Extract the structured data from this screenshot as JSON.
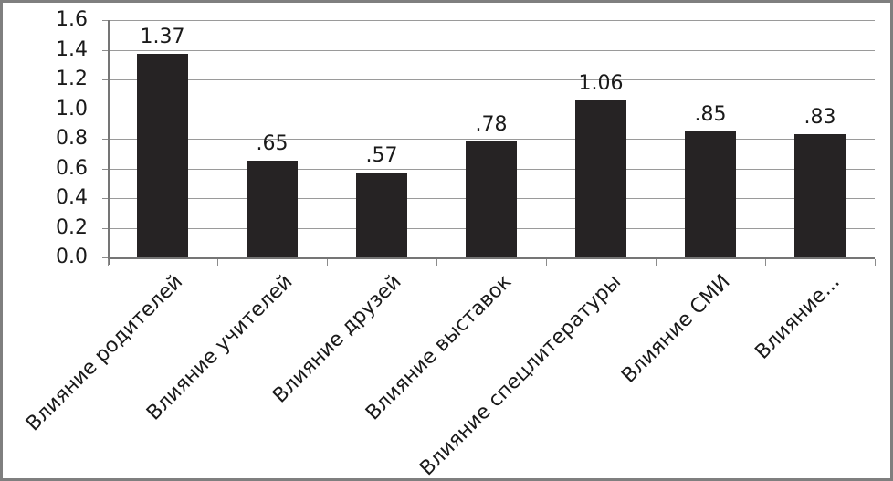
{
  "window": {
    "background": "#ffffff",
    "frame_border_color": "#7f7f7f"
  },
  "chart_data": {
    "type": "bar",
    "title": "",
    "xlabel": "",
    "ylabel": "",
    "categories": [
      "Влияние родителей",
      "Влияние учителей",
      "Влияние друзей",
      "Влияние выставок",
      "Влияние спецлитературы",
      "Влияние СМИ",
      "Влияние..."
    ],
    "values": [
      1.37,
      0.65,
      0.57,
      0.78,
      1.06,
      0.85,
      0.83
    ],
    "value_labels": [
      "1.37",
      ".65",
      ".57",
      ".78",
      "1.06",
      ".85",
      ".83"
    ],
    "ylim": [
      0,
      1.6
    ],
    "ytick_step": 0.2,
    "ytick_labels": [
      "0.0",
      "0.2",
      "0.4",
      "0.6",
      "0.8",
      "1.0",
      "1.2",
      "1.4",
      "1.6"
    ],
    "grid": true,
    "legend": false,
    "category_label_rotation_deg": 45,
    "bar_color": "#262324",
    "gridline_color": "#9a9a9a",
    "axis_color": "#757575",
    "tick_color": "#8c8c8c",
    "text_color": "#1a1a1a"
  }
}
